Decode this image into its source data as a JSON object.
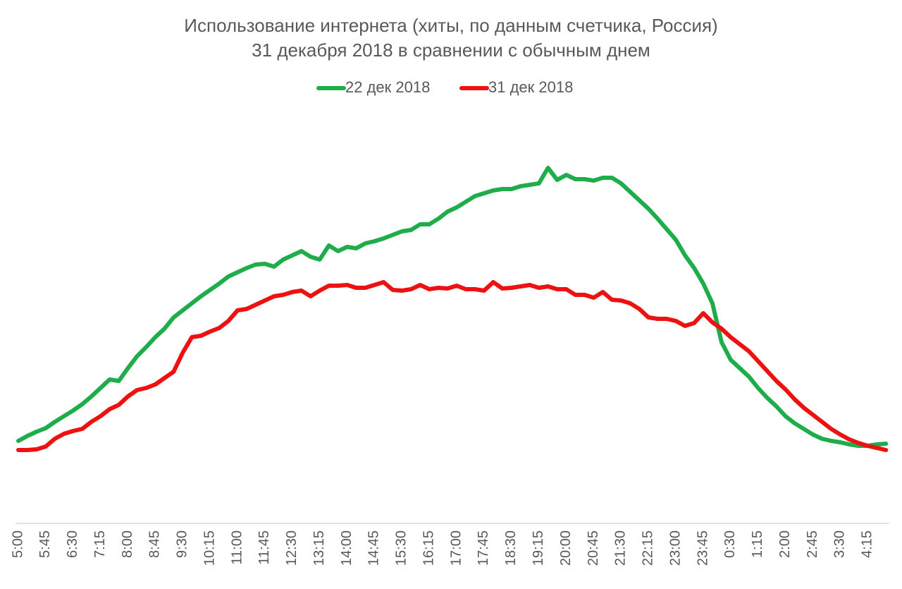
{
  "chart_data": {
    "type": "line",
    "title": "Использование интернета (хиты, по данным счетчика, Россия)",
    "subtitle": "31 декабря 2018 в сравнении с обычным днем",
    "categories": [
      "5:00",
      null,
      null,
      "5:45",
      null,
      null,
      "6:30",
      null,
      null,
      "7:15",
      null,
      null,
      "8:00",
      null,
      null,
      "8:45",
      null,
      null,
      "9:30",
      null,
      null,
      "10:15",
      null,
      null,
      "11:00",
      null,
      null,
      "11:45",
      null,
      null,
      "12:30",
      null,
      null,
      "13:15",
      null,
      null,
      "14:00",
      null,
      null,
      "14:45",
      null,
      null,
      "15:30",
      null,
      null,
      "16:15",
      null,
      null,
      "17:00",
      null,
      null,
      "17:45",
      null,
      null,
      "18:30",
      null,
      null,
      "19:15",
      null,
      null,
      "20:00",
      null,
      null,
      "20:45",
      null,
      null,
      "21:30",
      null,
      null,
      "22:15",
      null,
      null,
      "23:00",
      null,
      null,
      "23:45",
      null,
      null,
      "0:30",
      null,
      null,
      "1:15",
      null,
      null,
      "2:00",
      null,
      null,
      "2:45",
      null,
      null,
      "3:30",
      null,
      null,
      "4:15",
      null,
      null
    ],
    "series": [
      {
        "name": "22 дек 2018",
        "color": "#1fad4c",
        "values": [
          117,
          124,
          130,
          135,
          144,
          152,
          160,
          169,
          180,
          192,
          204,
          202,
          220,
          237,
          250,
          264,
          276,
          292,
          302,
          312,
          322,
          331,
          340,
          350,
          356,
          362,
          367,
          368,
          364,
          374,
          380,
          386,
          378,
          374,
          394,
          386,
          392,
          390,
          397,
          400,
          404,
          409,
          414,
          416,
          424,
          424,
          432,
          442,
          448,
          456,
          464,
          468,
          472,
          474,
          474,
          478,
          480,
          482,
          504,
          487,
          494,
          488,
          488,
          486,
          490,
          490,
          482,
          470,
          458,
          446,
          432,
          417,
          402,
          380,
          362,
          340,
          312,
          257,
          232,
          220,
          208,
          192,
          178,
          166,
          152,
          142,
          134,
          126,
          120,
          117,
          115,
          112,
          110,
          110,
          112,
          113
        ]
      },
      {
        "name": "31 дек 2018",
        "color": "#ee1111",
        "values": [
          104,
          104,
          105,
          109,
          120,
          127,
          131,
          134,
          144,
          152,
          162,
          168,
          180,
          189,
          192,
          197,
          206,
          215,
          242,
          264,
          266,
          272,
          277,
          287,
          302,
          304,
          310,
          316,
          322,
          324,
          328,
          330,
          322,
          330,
          337,
          337,
          338,
          334,
          334,
          338,
          342,
          331,
          330,
          332,
          338,
          332,
          334,
          333,
          337,
          332,
          332,
          330,
          342,
          333,
          334,
          336,
          338,
          334,
          336,
          332,
          332,
          324,
          324,
          320,
          328,
          317,
          316,
          312,
          304,
          292,
          290,
          290,
          287,
          280,
          284,
          298,
          285,
          276,
          264,
          254,
          244,
          230,
          216,
          202,
          190,
          176,
          164,
          154,
          144,
          134,
          126,
          119,
          114,
          110,
          107,
          104
        ]
      }
    ],
    "ylim": [
      0,
      600
    ]
  }
}
